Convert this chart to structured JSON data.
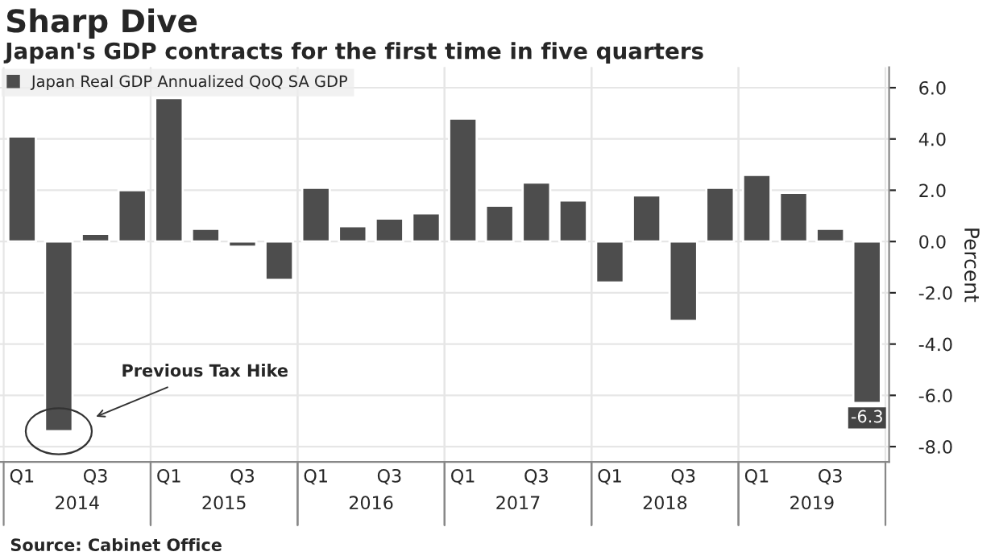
{
  "chart_data": {
    "type": "bar",
    "title": "Sharp Dive",
    "subtitle": "Japan's GDP contracts for the first time in five quarters",
    "ylabel": "Percent",
    "categories": [
      "Q1",
      null,
      "Q3",
      null,
      "Q1",
      null,
      "Q3",
      null,
      "Q1",
      null,
      "Q3",
      null,
      "Q1",
      null,
      "Q3",
      null,
      "Q1",
      null,
      "Q3",
      null,
      "Q1",
      null,
      "Q3",
      null
    ],
    "series": [
      {
        "name": "Japan Real GDP Annualized QoQ SA GDP",
        "color": "#4d4d4d",
        "values": [
          4.1,
          -7.4,
          0.3,
          2.0,
          5.6,
          0.5,
          -0.2,
          -1.5,
          2.1,
          0.6,
          0.9,
          1.1,
          4.8,
          1.4,
          2.3,
          1.6,
          -1.6,
          1.8,
          -3.1,
          2.1,
          2.6,
          1.9,
          0.5,
          -6.3
        ],
        "value_labels": [
          null,
          null,
          null,
          null,
          null,
          null,
          null,
          null,
          null,
          null,
          null,
          null,
          null,
          null,
          null,
          null,
          null,
          null,
          null,
          null,
          null,
          null,
          null,
          "-6.3"
        ]
      }
    ],
    "ylim": [
      -8.6,
      6.8
    ],
    "yticks": [
      {
        "value": -8,
        "label": "-8.0"
      },
      {
        "value": -6,
        "label": "-6.0"
      },
      {
        "value": -4,
        "label": "-4.0"
      },
      {
        "value": -2,
        "label": "-2.0"
      },
      {
        "value": 0,
        "label": "0.0"
      },
      {
        "value": 2,
        "label": "2.0"
      },
      {
        "value": 4,
        "label": "4.0"
      },
      {
        "value": 6,
        "label": "6.0"
      }
    ],
    "grid": true,
    "legend": "top left",
    "annotations": [
      "Previous Tax Hike",
      "2014",
      "2015",
      "2016",
      "2017",
      "2018",
      "2019",
      "Source: Cabinet Office"
    ]
  }
}
